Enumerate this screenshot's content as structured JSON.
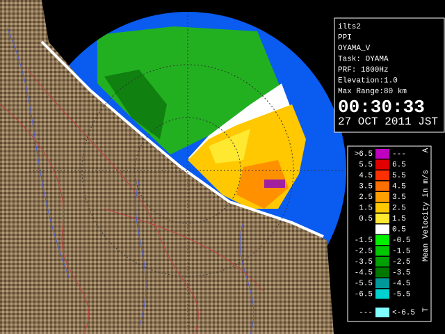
{
  "info": {
    "lines": [
      "ilts2",
      "PPI",
      "OYAMA_V",
      "Task: OYAMA",
      "PRF: 1800Hz",
      "Elevation:1.0",
      "Max Range:80 km"
    ],
    "time": "00:30:33",
    "date": "27 OCT 2011 JST"
  },
  "legend": {
    "title": "Mean Velocity in m/s",
    "top_mark": "A",
    "bottom_mark": "T",
    "rows": [
      {
        "low": ">6.5",
        "high": "---",
        "color": "#c000c0"
      },
      {
        "low": "5.5",
        "high": "6.5",
        "color": "#e00000"
      },
      {
        "low": "4.5",
        "high": "5.5",
        "color": "#ff3000"
      },
      {
        "low": "3.5",
        "high": "4.5",
        "color": "#ff7000"
      },
      {
        "low": "2.5",
        "high": "3.5",
        "color": "#ffa000"
      },
      {
        "low": "1.5",
        "high": "2.5",
        "color": "#ffc800"
      },
      {
        "low": "0.5",
        "high": "1.5",
        "color": "#ffe830"
      },
      {
        "low": null,
        "high": "0.5",
        "color": "#ffffff"
      },
      {
        "low": "-1.5",
        "high": "-0.5",
        "color": "#00f000"
      },
      {
        "low": "-2.5",
        "high": "-1.5",
        "color": "#00c800"
      },
      {
        "low": "-3.5",
        "high": "-2.5",
        "color": "#00a000"
      },
      {
        "low": "-4.5",
        "high": "-3.5",
        "color": "#007800"
      },
      {
        "low": "-5.5",
        "high": "-4.5",
        "color": "#009898"
      },
      {
        "low": "-6.5",
        "high": "-5.5",
        "color": "#00d0d0"
      },
      {
        "low": "---",
        "high": "<-6.5",
        "color": "#80ffff"
      }
    ]
  }
}
